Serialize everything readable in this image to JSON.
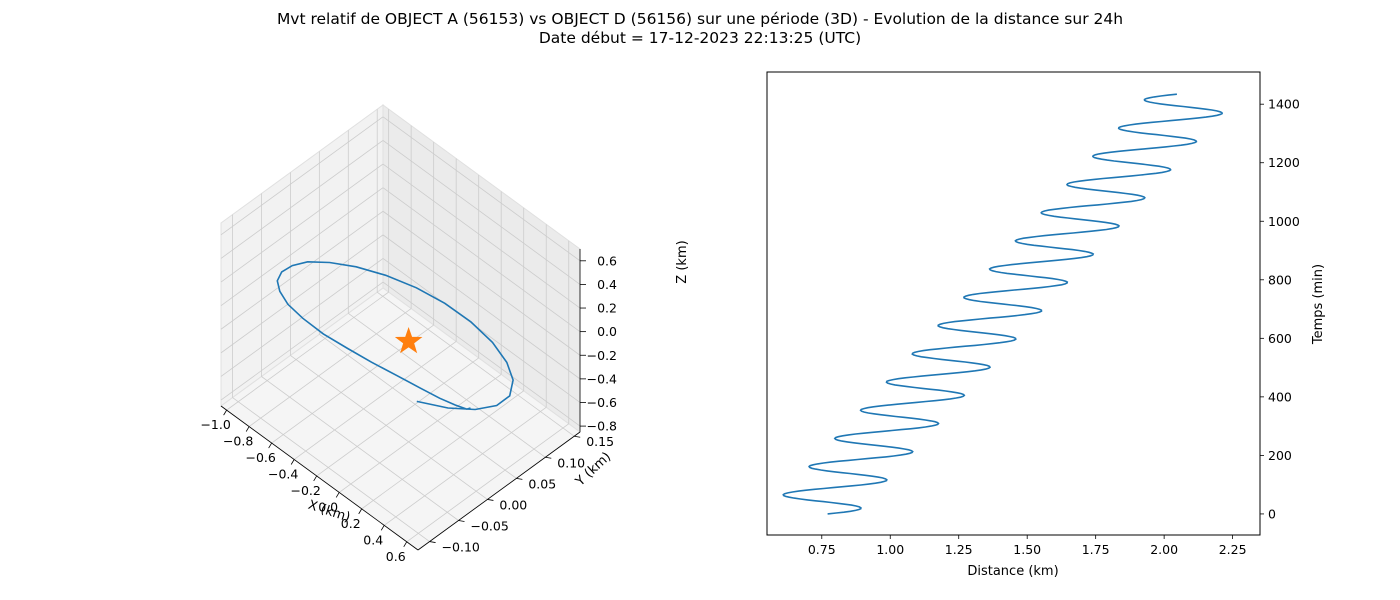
{
  "figure": {
    "title_line1": "Mvt relatif de OBJECT A (56153) vs OBJECT D (56156) sur une période (3D) - Evolution de la distance sur 24h",
    "title_line2": "Date début = 17-12-2023 22:13:25 (UTC)"
  },
  "colors": {
    "trajectory": "#1f77b4",
    "origin_marker": "#ff7f0e",
    "pane": "#f2f2f2",
    "grid": "#cccccc"
  },
  "chart_data": [
    {
      "type": "line3d",
      "xlabel": "X (km)",
      "ylabel": "Y (km)",
      "zlabel": "Z (km)",
      "xlim": [
        -1.05,
        0.7
      ],
      "ylim": [
        -0.12,
        0.16
      ],
      "zlim": [
        -0.85,
        0.7
      ],
      "xticks": [
        "−1.0",
        "−0.8",
        "−0.6",
        "−0.4",
        "−0.2",
        "0.0",
        "0.2",
        "0.4",
        "0.6"
      ],
      "xtick_values": [
        -1.0,
        -0.8,
        -0.6,
        -0.4,
        -0.2,
        0.0,
        0.2,
        0.4,
        0.6
      ],
      "yticks": [
        "−0.10",
        "−0.05",
        "0.00",
        "0.05",
        "0.10",
        "0.15"
      ],
      "ytick_values": [
        -0.1,
        -0.05,
        0.0,
        0.05,
        0.1,
        0.15
      ],
      "zticks": [
        "−0.8",
        "−0.6",
        "−0.4",
        "−0.2",
        "0.0",
        "0.2",
        "0.4",
        "0.6"
      ],
      "ztick_values": [
        -0.8,
        -0.6,
        -0.4,
        -0.2,
        0.0,
        0.2,
        0.4,
        0.6
      ],
      "grid": true,
      "origin_marker": {
        "x": 0,
        "y": 0,
        "z": 0,
        "shape": "star"
      },
      "series": [
        {
          "x": [
            0.55,
            0.44,
            0.27,
            0.08,
            -0.12,
            -0.33,
            -0.52,
            -0.68,
            -0.82,
            -0.92,
            -0.97,
            -0.97,
            -0.93,
            -0.85,
            -0.74,
            -0.61,
            -0.45,
            -0.27,
            -0.08,
            0.11,
            0.28,
            0.43,
            0.55,
            0.62,
            0.64,
            0.6,
            0.5,
            0.35,
            0.17,
            -0.03
          ],
          "y": [
            0.0,
            0.015,
            0.028,
            0.038,
            0.043,
            0.043,
            0.037,
            0.027,
            0.012,
            -0.004,
            -0.02,
            -0.034,
            -0.046,
            -0.054,
            -0.057,
            -0.056,
            -0.049,
            -0.038,
            -0.024,
            -0.008,
            0.008,
            0.024,
            0.038,
            0.049,
            0.056,
            0.058,
            0.055,
            0.047,
            0.035,
            0.02
          ],
          "z": [
            -0.18,
            -0.32,
            -0.45,
            -0.56,
            -0.63,
            -0.67,
            -0.67,
            -0.63,
            -0.55,
            -0.43,
            -0.29,
            -0.13,
            0.03,
            0.19,
            0.33,
            0.45,
            0.53,
            0.58,
            0.59,
            0.56,
            0.49,
            0.38,
            0.24,
            0.08,
            -0.08,
            -0.25,
            -0.39,
            -0.5,
            -0.57,
            -0.6
          ]
        }
      ]
    },
    {
      "type": "line",
      "xlabel": "Distance (km)",
      "ylabel": "Temps (min)",
      "xlim": [
        0.55,
        2.35
      ],
      "ylim": [
        -72,
        1510
      ],
      "xticks": [
        "0.75",
        "1.00",
        "1.25",
        "1.50",
        "1.75",
        "2.00",
        "2.25"
      ],
      "xtick_values": [
        0.75,
        1.0,
        1.25,
        1.5,
        1.75,
        2.0,
        2.25
      ],
      "yticks": [
        "0",
        "200",
        "400",
        "600",
        "800",
        "1000",
        "1200",
        "1400"
      ],
      "ytick_values": [
        0,
        200,
        400,
        600,
        800,
        1000,
        1200,
        1400
      ],
      "y_axis_side": "right",
      "model": {
        "description": "distance(t) = base + slope·t + amp·sin(2π·t/period + phase)",
        "t_start": 0,
        "t_end": 1435,
        "t_step": 3,
        "base": 0.71,
        "slope": 0.000977,
        "amp": 0.165,
        "period": 96.4,
        "phase": 0.38
      }
    }
  ]
}
